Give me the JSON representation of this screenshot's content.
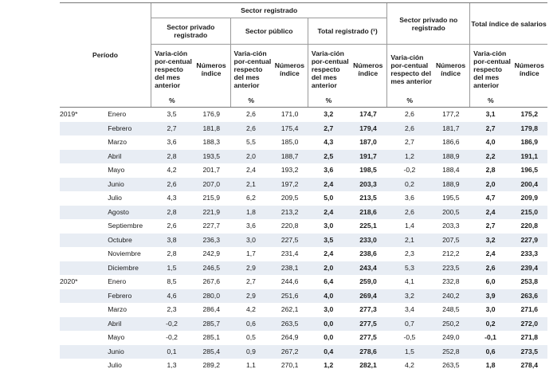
{
  "header": {
    "period": "Período",
    "registered_sector": "Sector registrado",
    "private_registered": "Sector privado registrado",
    "public_sector": "Sector público",
    "total_registered": "Total registrado (¹)",
    "private_unregistered": "Sector privado no registrado",
    "total_index": "Total índice de salarios",
    "variation": "Varia-ción por-centual respecto del mes anterior",
    "index_numbers": "Números índice",
    "percent": "%"
  },
  "rows": [
    {
      "year": "2019*",
      "month": "Enero",
      "v1": "3,5",
      "i1": "176,9",
      "v2": "2,6",
      "i2": "171,0",
      "v3": "3,2",
      "i3": "174,7",
      "v4": "2,6",
      "i4": "177,2",
      "v5": "3,1",
      "i5": "175,2"
    },
    {
      "year": "",
      "month": "Febrero",
      "v1": "2,7",
      "i1": "181,8",
      "v2": "2,6",
      "i2": "175,4",
      "v3": "2,7",
      "i3": "179,4",
      "v4": "2,6",
      "i4": "181,7",
      "v5": "2,7",
      "i5": "179,8"
    },
    {
      "year": "",
      "month": "Marzo",
      "v1": "3,6",
      "i1": "188,3",
      "v2": "5,5",
      "i2": "185,0",
      "v3": "4,3",
      "i3": "187,0",
      "v4": "2,7",
      "i4": "186,6",
      "v5": "4,0",
      "i5": "186,9"
    },
    {
      "year": "",
      "month": "Abril",
      "v1": "2,8",
      "i1": "193,5",
      "v2": "2,0",
      "i2": "188,7",
      "v3": "2,5",
      "i3": "191,7",
      "v4": "1,2",
      "i4": "188,9",
      "v5": "2,2",
      "i5": "191,1"
    },
    {
      "year": "",
      "month": "Mayo",
      "v1": "4,2",
      "i1": "201,7",
      "v2": "2,4",
      "i2": "193,2",
      "v3": "3,6",
      "i3": "198,5",
      "v4": "-0,2",
      "i4": "188,4",
      "v5": "2,8",
      "i5": "196,5"
    },
    {
      "year": "",
      "month": "Junio",
      "v1": "2,6",
      "i1": "207,0",
      "v2": "2,1",
      "i2": "197,2",
      "v3": "2,4",
      "i3": "203,3",
      "v4": "0,2",
      "i4": "188,9",
      "v5": "2,0",
      "i5": "200,4"
    },
    {
      "year": "",
      "month": "Julio",
      "v1": "4,3",
      "i1": "215,9",
      "v2": "6,2",
      "i2": "209,5",
      "v3": "5,0",
      "i3": "213,5",
      "v4": "3,6",
      "i4": "195,5",
      "v5": "4,7",
      "i5": "209,9"
    },
    {
      "year": "",
      "month": "Agosto",
      "v1": "2,8",
      "i1": "221,9",
      "v2": "1,8",
      "i2": "213,2",
      "v3": "2,4",
      "i3": "218,6",
      "v4": "2,6",
      "i4": "200,5",
      "v5": "2,4",
      "i5": "215,0"
    },
    {
      "year": "",
      "month": "Septiembre",
      "v1": "2,6",
      "i1": "227,7",
      "v2": "3,6",
      "i2": "220,8",
      "v3": "3,0",
      "i3": "225,1",
      "v4": "1,4",
      "i4": "203,3",
      "v5": "2,7",
      "i5": "220,8"
    },
    {
      "year": "",
      "month": "Octubre",
      "v1": "3,8",
      "i1": "236,3",
      "v2": "3,0",
      "i2": "227,5",
      "v3": "3,5",
      "i3": "233,0",
      "v4": "2,1",
      "i4": "207,5",
      "v5": "3,2",
      "i5": "227,9"
    },
    {
      "year": "",
      "month": "Noviembre",
      "v1": "2,8",
      "i1": "242,9",
      "v2": "1,7",
      "i2": "231,4",
      "v3": "2,4",
      "i3": "238,6",
      "v4": "2,3",
      "i4": "212,2",
      "v5": "2,4",
      "i5": "233,3"
    },
    {
      "year": "",
      "month": "Diciembre",
      "v1": "1,5",
      "i1": "246,5",
      "v2": "2,9",
      "i2": "238,1",
      "v3": "2,0",
      "i3": "243,4",
      "v4": "5,3",
      "i4": "223,5",
      "v5": "2,6",
      "i5": "239,4"
    },
    {
      "year": "2020*",
      "month": "Enero",
      "v1": "8,5",
      "i1": "267,6",
      "v2": "2,7",
      "i2": "244,6",
      "v3": "6,4",
      "i3": "259,0",
      "v4": "4,1",
      "i4": "232,8",
      "v5": "6,0",
      "i5": "253,8"
    },
    {
      "year": "",
      "month": "Febrero",
      "v1": "4,6",
      "i1": "280,0",
      "v2": "2,9",
      "i2": "251,6",
      "v3": "4,0",
      "i3": "269,4",
      "v4": "3,2",
      "i4": "240,2",
      "v5": "3,9",
      "i5": "263,6"
    },
    {
      "year": "",
      "month": "Marzo",
      "v1": "2,3",
      "i1": "286,4",
      "v2": "4,2",
      "i2": "262,1",
      "v3": "3,0",
      "i3": "277,3",
      "v4": "3,4",
      "i4": "248,5",
      "v5": "3,0",
      "i5": "271,6"
    },
    {
      "year": "",
      "month": "Abril",
      "v1": "-0,2",
      "i1": "285,7",
      "v2": "0,6",
      "i2": "263,5",
      "v3": "0,0",
      "i3": "277,5",
      "v4": "0,7",
      "i4": "250,2",
      "v5": "0,2",
      "i5": "272,0"
    },
    {
      "year": "",
      "month": "Mayo",
      "v1": "-0,2",
      "i1": "285,1",
      "v2": "0,5",
      "i2": "264,9",
      "v3": "0,0",
      "i3": "277,5",
      "v4": "-0,5",
      "i4": "249,0",
      "v5": "-0,1",
      "i5": "271,8"
    },
    {
      "year": "",
      "month": "Junio",
      "v1": "0,1",
      "i1": "285,4",
      "v2": "0,9",
      "i2": "267,2",
      "v3": "0,4",
      "i3": "278,6",
      "v4": "1,5",
      "i4": "252,8",
      "v5": "0,6",
      "i5": "273,5"
    },
    {
      "year": "",
      "month": "Julio",
      "v1": "1,3",
      "i1": "289,2",
      "v2": "1,1",
      "i2": "270,1",
      "v3": "1,2",
      "i3": "282,1",
      "v4": "4,2",
      "i4": "263,5",
      "v5": "1,8",
      "i5": "278,4"
    }
  ]
}
